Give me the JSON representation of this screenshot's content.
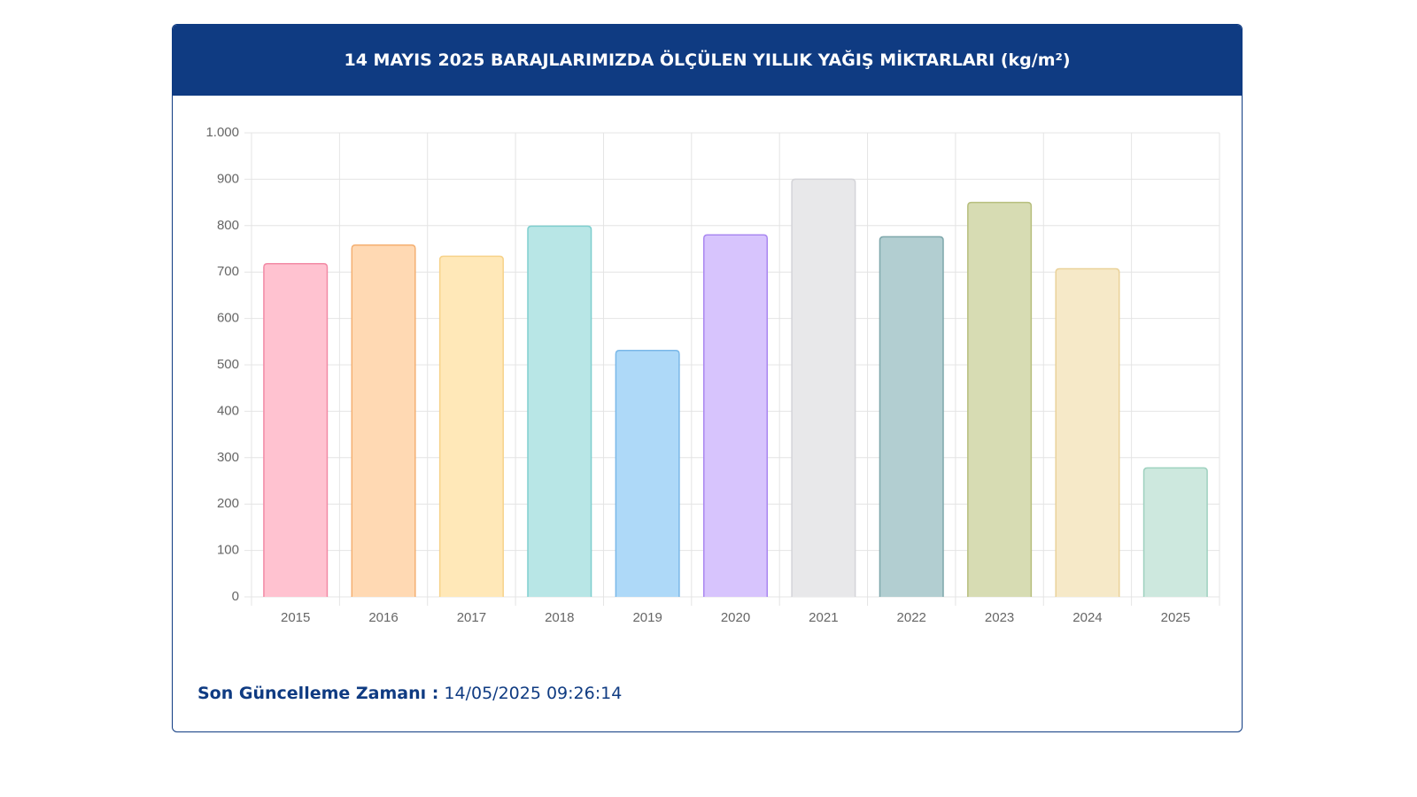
{
  "chart_data": {
    "type": "bar",
    "title": "14 MAYIS 2025 BARAJLARIMIZDA ÖLÇÜLEN YILLIK YAĞIŞ MİKTARLARI (kg/m²)",
    "categories": [
      "2015",
      "2016",
      "2017",
      "2018",
      "2019",
      "2020",
      "2021",
      "2022",
      "2023",
      "2024",
      "2025"
    ],
    "values": [
      718,
      758,
      734,
      799,
      531,
      780,
      900,
      776,
      850,
      707,
      278
    ],
    "colors": [
      "#ffc2d0",
      "#ffd9b3",
      "#ffe8b8",
      "#b8e6e6",
      "#aed9f8",
      "#d7c4fd",
      "#e8e8ea",
      "#b2ced1",
      "#d7dcb3",
      "#f6e9c8",
      "#cde8de"
    ],
    "border_colors": [
      "#f28aa5",
      "#f4b072",
      "#f6d28a",
      "#7fcfcf",
      "#7ab8e8",
      "#a987f0",
      "#d4d4d8",
      "#7ea7ab",
      "#b7bf7e",
      "#ead29a",
      "#9ed1bf"
    ],
    "ylim": [
      0,
      1000
    ],
    "yticks": [
      0,
      100,
      200,
      300,
      400,
      500,
      600,
      700,
      800,
      900,
      {
        "value": 1000,
        "label": "1.000"
      }
    ],
    "grid": true,
    "footer_label": "Son Güncelleme Zamanı :",
    "footer_value": "14/05/2025 09:26:14"
  }
}
